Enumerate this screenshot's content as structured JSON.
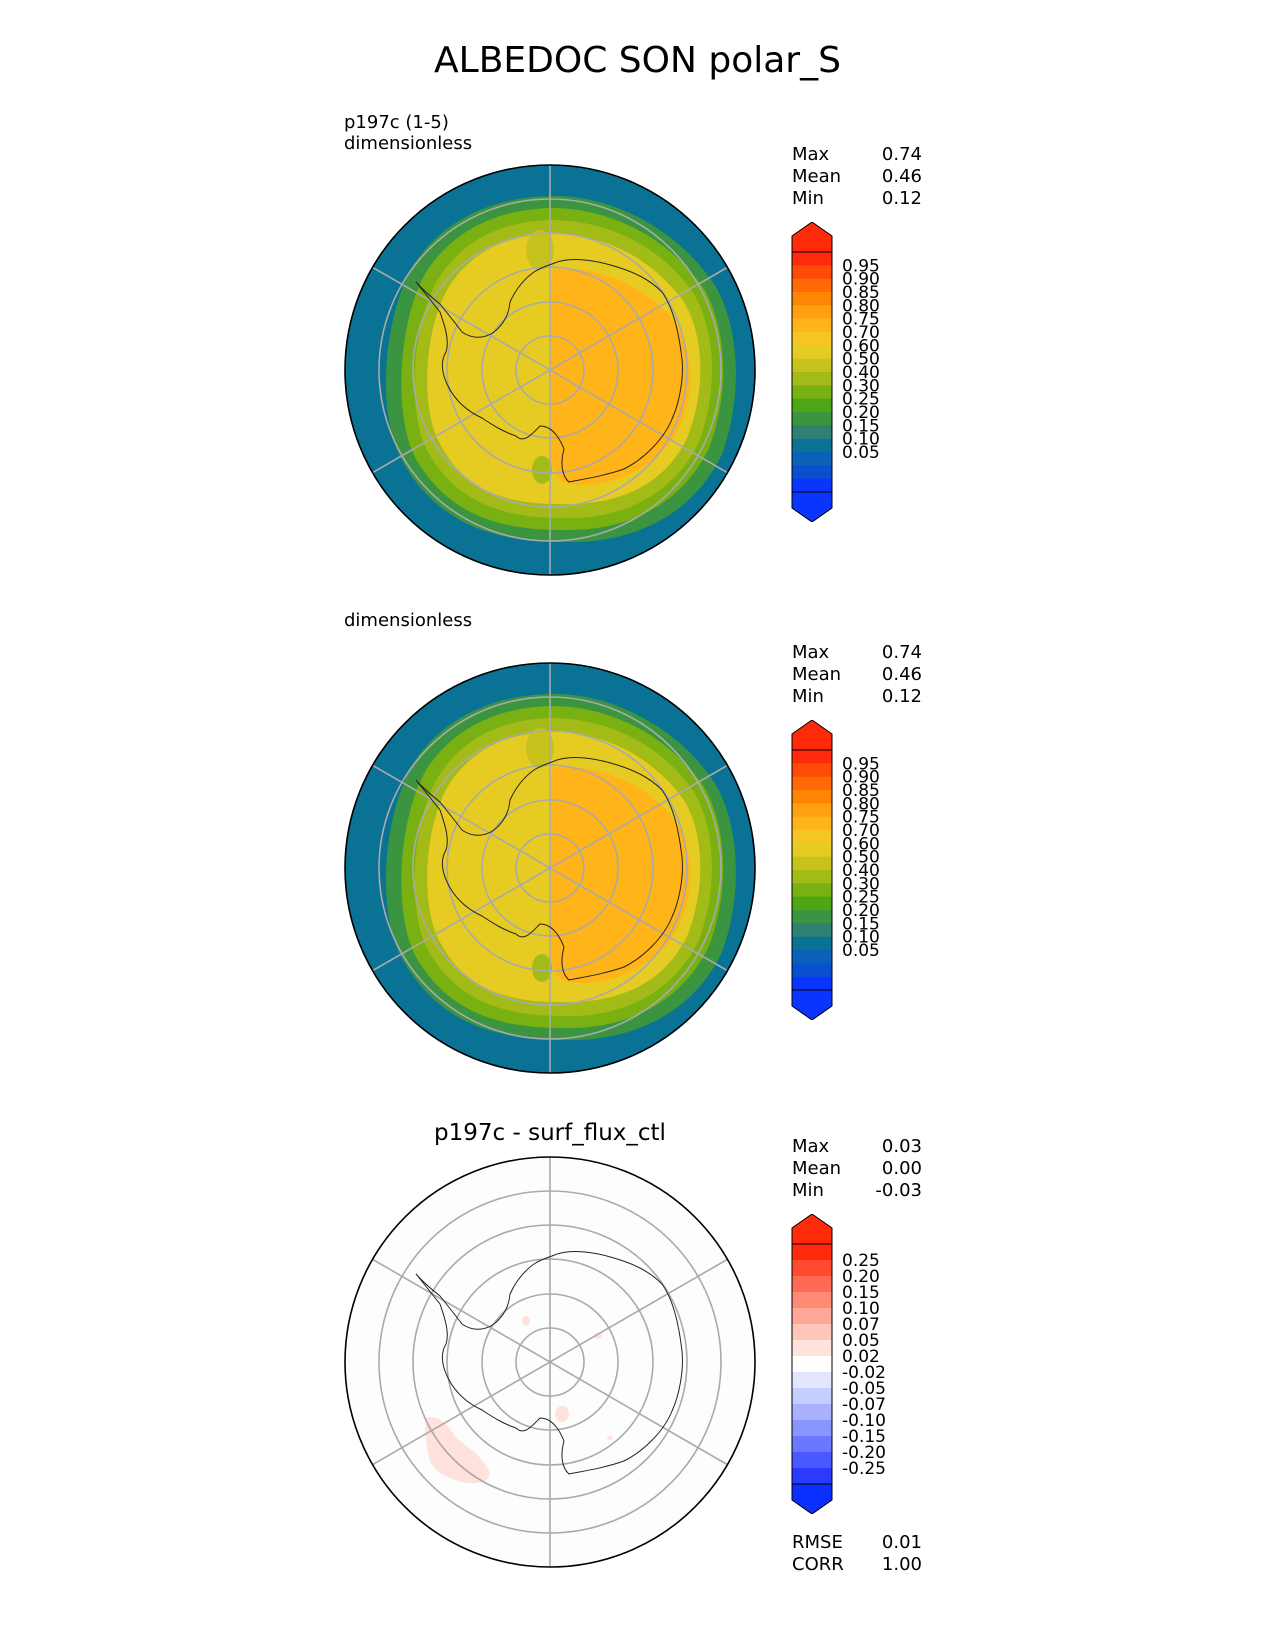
{
  "figure_title": "ALBEDOC SON polar_S",
  "panels": [
    {
      "title": "",
      "subtitle": "p197c (1-5)\ndimensionless",
      "stats": [
        {
          "label": "Max",
          "value": "0.74"
        },
        {
          "label": "Mean",
          "value": "0.46"
        },
        {
          "label": "Min",
          "value": "0.12"
        }
      ],
      "colorbar": {
        "labels": [
          "0.95",
          "0.90",
          "0.85",
          "0.80",
          "0.75",
          "0.70",
          "0.60",
          "0.50",
          "0.40",
          "0.30",
          "0.25",
          "0.20",
          "0.15",
          "0.10",
          "0.05"
        ],
        "colors": [
          "#ff2a0a",
          "#ff4a08",
          "#ff6a06",
          "#ff8505",
          "#ffa010",
          "#ffb41a",
          "#f5c623",
          "#e6cb23",
          "#c8c21d",
          "#a3bb16",
          "#79b012",
          "#4ea614",
          "#3a9440",
          "#2e8070",
          "#0a7294",
          "#0a62b8",
          "#0a4fd0",
          "#0a35ff"
        ],
        "over_color": "#ff2a0a",
        "under_color": "#0a35ff"
      }
    },
    {
      "title": "",
      "subtitle": "dimensionless",
      "stats": [
        {
          "label": "Max",
          "value": "0.74"
        },
        {
          "label": "Mean",
          "value": "0.46"
        },
        {
          "label": "Min",
          "value": "0.12"
        }
      ],
      "colorbar": {
        "labels": [
          "0.95",
          "0.90",
          "0.85",
          "0.80",
          "0.75",
          "0.70",
          "0.60",
          "0.50",
          "0.40",
          "0.30",
          "0.25",
          "0.20",
          "0.15",
          "0.10",
          "0.05"
        ],
        "colors": [
          "#ff2a0a",
          "#ff4a08",
          "#ff6a06",
          "#ff8505",
          "#ffa010",
          "#ffb41a",
          "#f5c623",
          "#e6cb23",
          "#c8c21d",
          "#a3bb16",
          "#79b012",
          "#4ea614",
          "#3a9440",
          "#2e8070",
          "#0a7294",
          "#0a62b8",
          "#0a4fd0",
          "#0a35ff"
        ],
        "over_color": "#ff2a0a",
        "under_color": "#0a35ff"
      }
    },
    {
      "title": "p197c - surf_flux_ctl",
      "subtitle": "",
      "stats": [
        {
          "label": "Max",
          "value": "0.03"
        },
        {
          "label": "Mean",
          "value": "0.00"
        },
        {
          "label": "Min",
          "value": "-0.03"
        }
      ],
      "extra_stats": [
        {
          "label": "RMSE",
          "value": "0.01"
        },
        {
          "label": "CORR",
          "value": "1.00"
        }
      ],
      "colorbar": {
        "labels": [
          "0.25",
          "0.20",
          "0.15",
          "0.10",
          "0.07",
          "0.05",
          "0.02",
          "-0.02",
          "-0.05",
          "-0.07",
          "-0.10",
          "-0.15",
          "-0.20",
          "-0.25"
        ],
        "colors": [
          "#ff2a0a",
          "#ff4a30",
          "#ff6a55",
          "#ff8a75",
          "#ffa898",
          "#ffc6ba",
          "#ffe2dc",
          "#ffffff",
          "#e2e6ff",
          "#c6ceff",
          "#a8b2ff",
          "#8a96ff",
          "#6a78ff",
          "#4a58ff",
          "#2a3aff"
        ],
        "over_color": "#ff2a0a",
        "under_color": "#0a30ff"
      }
    }
  ]
}
